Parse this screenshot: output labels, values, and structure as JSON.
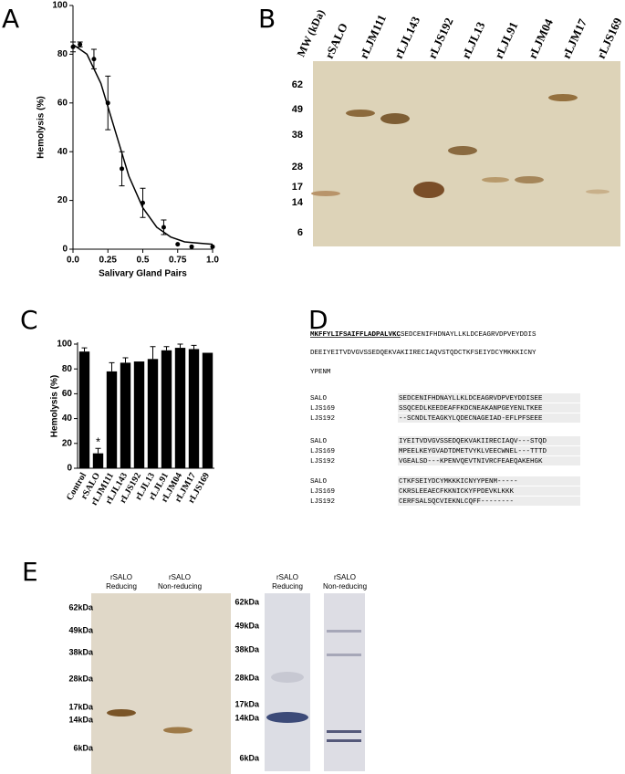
{
  "chart_data": [
    {
      "type": "scatter",
      "panel_label": "A",
      "xlabel": "Salivary Gland Pairs",
      "ylabel": "Hemolysis (%)",
      "x": [
        0,
        0.05,
        0.15,
        0.25,
        0.35,
        0.5,
        0.65,
        0.75,
        0.85,
        1.0
      ],
      "values": [
        83,
        84,
        78,
        60,
        33,
        19,
        9,
        2,
        1,
        1
      ],
      "errors": [
        2,
        1,
        4,
        11,
        7,
        6,
        3,
        null,
        null,
        null
      ],
      "fit": {
        "x": [
          0,
          0.1,
          0.2,
          0.3,
          0.4,
          0.5,
          0.6,
          0.7,
          0.8,
          0.9,
          1.0
        ],
        "values": [
          84,
          80,
          68,
          49,
          30,
          17,
          9,
          5,
          3,
          2.5,
          2
        ]
      },
      "color": "#000000",
      "xlim": [
        0,
        1
      ],
      "xticks": [
        {
          "value": 0,
          "label": "0.0"
        },
        0.25,
        0.5,
        0.75,
        {
          "value": 1,
          "label": "1.0"
        }
      ],
      "ylim": [
        0,
        100
      ],
      "yticks": [
        0,
        20,
        40,
        60,
        80,
        100
      ]
    },
    {
      "type": "bar",
      "panel_label": "C",
      "ylabel": "Hemolysis (%)",
      "categories": [
        "Control",
        "rSALO",
        "rLJM111",
        "rLJL143",
        "rLJS192",
        "rLJL13",
        "rLJL91",
        "rLJM04",
        "rLJM17",
        "rLJS169"
      ],
      "values": [
        94,
        12,
        78,
        85,
        86,
        88,
        95,
        97,
        96,
        93
      ],
      "errors": [
        3,
        4,
        7,
        4,
        null,
        10,
        3,
        3,
        3,
        null
      ],
      "annotation": "*",
      "color": "#000000",
      "ylim": [
        0,
        100
      ],
      "yticks": [
        0,
        20,
        40,
        60,
        80,
        100
      ]
    }
  ],
  "panel_b": {
    "label": "B",
    "mw_label": "MW (kDa)",
    "lanes": [
      "rSALO",
      "rLJM111",
      "rLJL143",
      "rLJS192",
      "rLJL13",
      "rLJL91",
      "rLJM04",
      "rLJM17",
      "rLJS169"
    ],
    "markers": [
      "62",
      "49",
      "38",
      "28",
      "17",
      "14",
      "6"
    ]
  },
  "panel_d": {
    "label": "D",
    "signal": "MKFFYLIFSAIFFLADPALVKC",
    "sequence": [
      "SEDCENIFHDNAYLLKLDCEAGRVDPVEYDDIS",
      "DEEIYEITVDVGVSSEDQEKVAKIIRECIAQVSTQDCTKFSEIYDCYMKKKICNY",
      "YPENM"
    ],
    "alignment": [
      [
        [
          "SALO",
          "SEDCENIFHDNAYLLKLDCEAGRVDPVEYDDISEE"
        ],
        [
          "LJS169",
          "SSQCEDLKEEDEAFFKDCNEAKANPGEYENLTKEE"
        ],
        [
          "LJS192",
          "--SCNDLTEAGKYLQDECNAGEIAD-EFLPFSEEE"
        ]
      ],
      [
        [
          "SALO",
          "IYEITVDVGVSSEDQEKVAKIIRECIAQV---STQD"
        ],
        [
          "LJS169",
          "MPEELKEYGVADTDMETVYKLVEECWNEL---TTTD"
        ],
        [
          "LJS192",
          "VGEALSD---KPENVQEVTNIVRCFEAEQAKEHGK"
        ]
      ],
      [
        [
          "SALO",
          "CTKFSEIYDCYMKKKICNYYPENM-----"
        ],
        [
          "LJS169",
          "CKRSLEEAECFKKNICKYFPDEVKLKKK"
        ],
        [
          "LJS192",
          "CERFSALSQCVIEKNLCQFF--------"
        ]
      ]
    ]
  },
  "panel_e": {
    "label": "E",
    "left": {
      "lanes": [
        [
          "rSALO",
          "Reducing"
        ],
        [
          "rSALO",
          "Non-reducing"
        ]
      ],
      "markers": [
        "62kDa",
        "49kDa",
        "38kDa",
        "28kDa",
        "17kDa",
        "14kDa",
        "6kDa"
      ]
    },
    "right": {
      "lanes": [
        [
          "rSALO",
          "Reducing"
        ],
        [
          "rSALO",
          "Non-reducing"
        ]
      ],
      "markers": [
        "62kDa",
        "49kDa",
        "38kDa",
        "28kDa",
        "17kDa",
        "14kDa",
        "6kDa"
      ]
    }
  }
}
